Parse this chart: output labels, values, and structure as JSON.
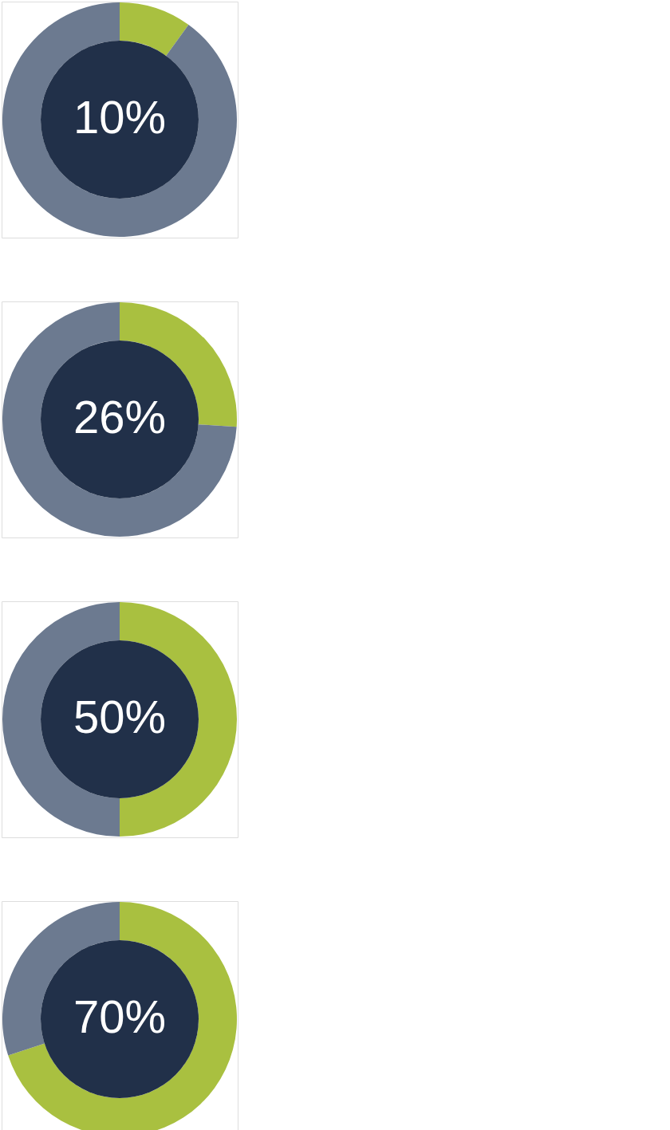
{
  "chart_data": [
    {
      "type": "donut",
      "categories": [
        null,
        null
      ],
      "values": [
        10,
        90
      ],
      "colors": [
        "#a9c040",
        "#6c7a90"
      ],
      "value_labels": [
        "10%",
        null
      ]
    },
    {
      "type": "donut",
      "categories": [
        null,
        null
      ],
      "values": [
        26,
        74
      ],
      "colors": [
        "#a9c040",
        "#6c7a90"
      ],
      "value_labels": [
        "26%",
        null
      ]
    },
    {
      "type": "donut",
      "categories": [
        null,
        null
      ],
      "values": [
        50,
        50
      ],
      "colors": [
        "#a9c040",
        "#6c7a90"
      ],
      "value_labels": [
        "50%",
        null
      ]
    },
    {
      "type": "donut",
      "categories": [
        null,
        null
      ],
      "values": [
        70,
        30
      ],
      "colors": [
        "#a9c040",
        "#6c7a90"
      ],
      "value_labels": [
        "70%",
        null
      ]
    }
  ]
}
